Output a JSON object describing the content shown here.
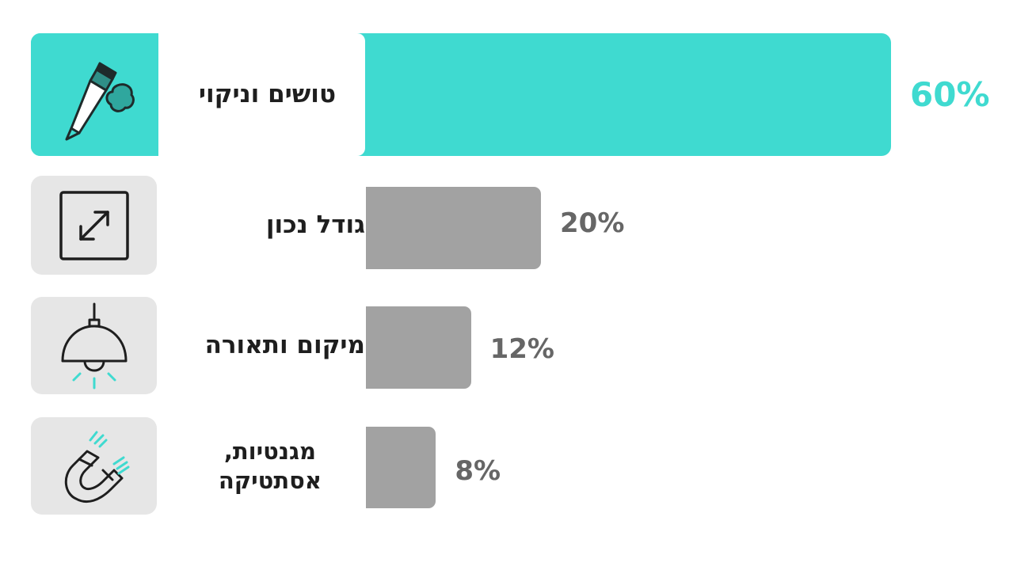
{
  "chart_data": {
    "type": "bar",
    "orientation": "horizontal",
    "categories": [
      "טושים וניקוי",
      "גודל נכון",
      "מיקום ותאורה",
      "מגנטיות,\nאסתטיקה"
    ],
    "values": [
      60,
      20,
      12,
      8
    ],
    "value_labels": [
      "60%",
      "20%",
      "12%",
      "8%"
    ],
    "icons": [
      "marker-and-eraser-icon",
      "resize-arrows-icon",
      "pendant-lamp-icon",
      "magnet-icon"
    ],
    "highlight_index": 0,
    "xlim": [
      0,
      60
    ]
  },
  "colors": {
    "highlight": "#3fdad0",
    "bar": "#a2a2a2",
    "tile": "#e6e6e6",
    "value_text": "#666666",
    "label_text": "#1e1e1e"
  }
}
